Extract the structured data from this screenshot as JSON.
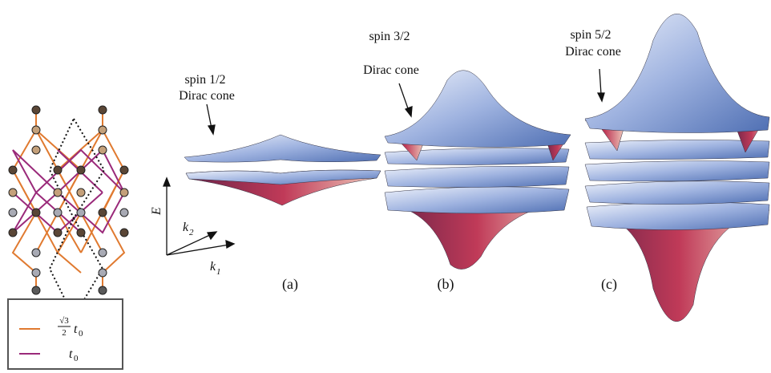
{
  "panels": [
    {
      "spin": "spin 1/2",
      "cone": "Dirac cone",
      "tag": "(a)"
    },
    {
      "spin": "spin 3/2",
      "cone": "Dirac cone",
      "tag": "(b)"
    },
    {
      "spin": "spin 5/2",
      "cone": "Dirac cone",
      "tag": "(c)"
    }
  ],
  "axes": {
    "e": "E",
    "k2": "k",
    "k2_sub": "2",
    "k1": "k",
    "k1_sub": "1"
  },
  "legend": [
    {
      "num": "√3",
      "den": "2",
      "sym": "t",
      "sub": "0"
    },
    {
      "sym": "t",
      "sub": "0"
    }
  ]
}
